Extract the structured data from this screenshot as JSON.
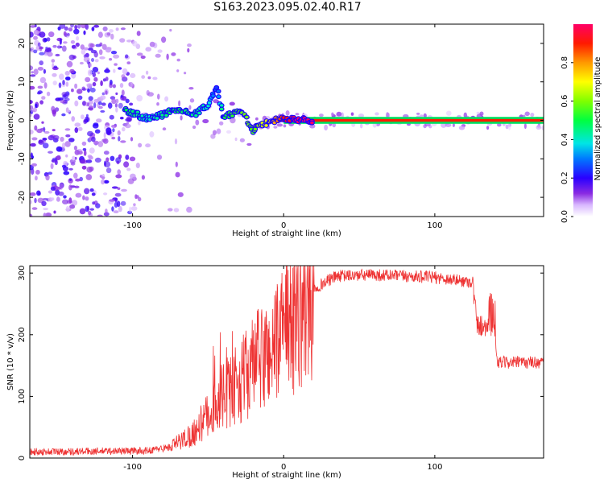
{
  "title": "S163.2023.095.02.40.R17",
  "chart_data": [
    {
      "type": "heatmap",
      "xlabel": "Height of straight line (km)",
      "ylabel": "Frequency (Hz)",
      "xlim": [
        -168,
        172
      ],
      "ylim": [
        -25,
        25
      ],
      "xticks": [
        "-100",
        "0",
        "100"
      ],
      "xtick_values": [
        -100,
        0,
        100
      ],
      "yticks": [
        "20",
        "10",
        "0",
        "-10",
        "-20"
      ],
      "ytick_values": [
        20,
        10,
        0,
        -10,
        -20
      ],
      "colorbar": {
        "label": "Normalized spectral amplitude",
        "ticks": [
          "0.0",
          "0.2",
          "0.4",
          "0.6",
          "0.8"
        ],
        "tick_values": [
          0.0,
          0.2,
          0.4,
          0.6,
          0.8
        ],
        "range": [
          0,
          1
        ]
      },
      "frequency_track": [
        {
          "x": -105,
          "f": 2.5,
          "a": 0.4
        },
        {
          "x": -90,
          "f": 0.5,
          "a": 0.3
        },
        {
          "x": -80,
          "f": 1.5,
          "a": 0.35
        },
        {
          "x": -70,
          "f": 3.0,
          "a": 0.4
        },
        {
          "x": -60,
          "f": 1.5,
          "a": 0.35
        },
        {
          "x": -50,
          "f": 4.0,
          "a": 0.3
        },
        {
          "x": -44,
          "f": 8.5,
          "a": 0.15
        },
        {
          "x": -40,
          "f": 1.0,
          "a": 0.4
        },
        {
          "x": -30,
          "f": 2.0,
          "a": 0.45
        },
        {
          "x": -25,
          "f": 1.0,
          "a": 0.5
        },
        {
          "x": -20,
          "f": -2.5,
          "a": 0.45
        },
        {
          "x": -15,
          "f": -1.0,
          "a": 0.55
        },
        {
          "x": -10,
          "f": -0.5,
          "a": 0.6
        },
        {
          "x": -5,
          "f": 0.0,
          "a": 0.7
        },
        {
          "x": 0,
          "f": 0.3,
          "a": 0.8
        },
        {
          "x": 10,
          "f": 0.2,
          "a": 0.9
        },
        {
          "x": 20,
          "f": 0.0,
          "a": 1.0
        },
        {
          "x": 100,
          "f": 0.0,
          "a": 1.0
        },
        {
          "x": 172,
          "f": 0.0,
          "a": 1.0
        }
      ]
    },
    {
      "type": "line",
      "xlabel": "Height of straight line (km)",
      "ylabel": "SNR (10 * v/v)",
      "xlim": [
        -168,
        172
      ],
      "ylim": [
        0,
        312
      ],
      "xticks": [
        "-100",
        "0",
        "100"
      ],
      "xtick_values": [
        -100,
        0,
        100
      ],
      "yticks": [
        "300",
        "200",
        "100",
        "0"
      ],
      "ytick_values": [
        300,
        200,
        100,
        0
      ],
      "color": "#ee3333",
      "envelope": [
        {
          "x": -168,
          "y": 10
        },
        {
          "x": -90,
          "y": 12
        },
        {
          "x": -75,
          "y": 18
        },
        {
          "x": -60,
          "y": 40
        },
        {
          "x": -50,
          "y": 70
        },
        {
          "x": -40,
          "y": 100
        },
        {
          "x": -30,
          "y": 120
        },
        {
          "x": -20,
          "y": 150
        },
        {
          "x": -10,
          "y": 170
        },
        {
          "x": 0,
          "y": 200
        },
        {
          "x": 10,
          "y": 240
        },
        {
          "x": 20,
          "y": 275
        },
        {
          "x": 35,
          "y": 295
        },
        {
          "x": 60,
          "y": 297
        },
        {
          "x": 100,
          "y": 293
        },
        {
          "x": 125,
          "y": 285
        },
        {
          "x": 128,
          "y": 215
        },
        {
          "x": 139,
          "y": 215
        },
        {
          "x": 141,
          "y": 155
        },
        {
          "x": 172,
          "y": 155
        }
      ]
    }
  ]
}
